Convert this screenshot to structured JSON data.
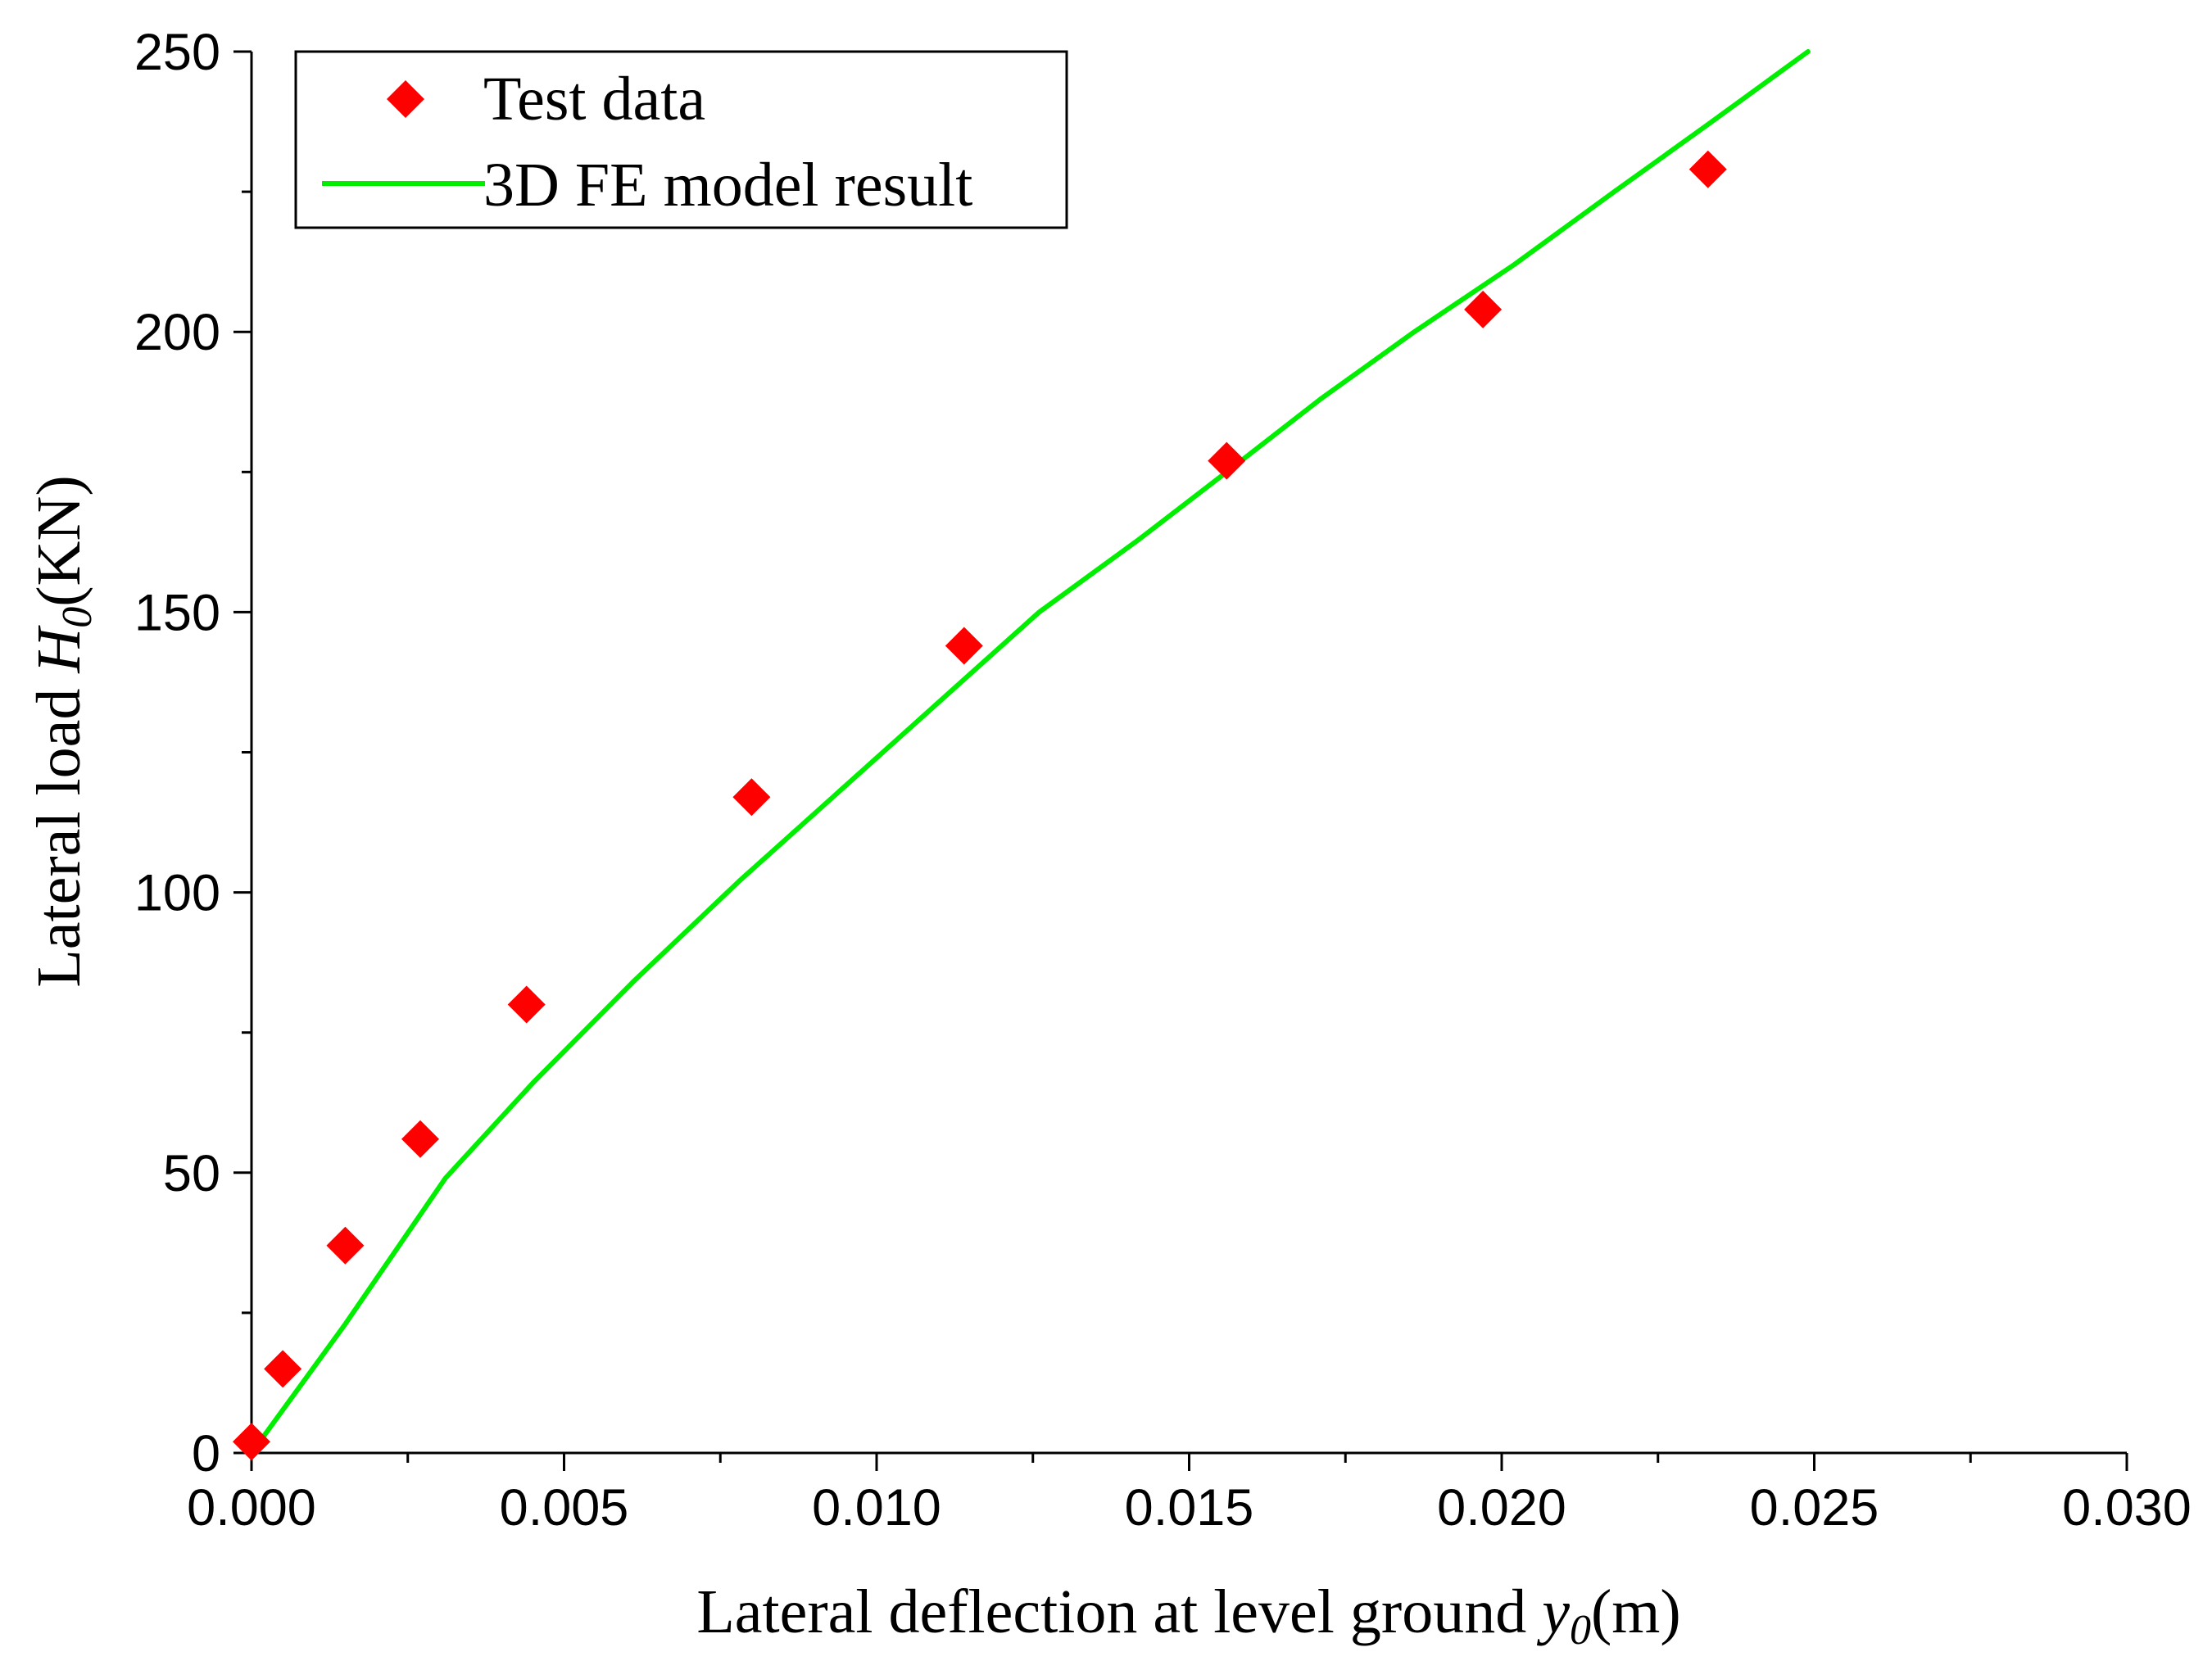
{
  "chart_data": {
    "type": "scatter",
    "title": "",
    "xlabel": {
      "main": "Lateral deflection at level ground ",
      "var": "y",
      "sub": "0",
      "unit": "(m)"
    },
    "ylabel": {
      "main": "Lateral load ",
      "var": "H",
      "sub": "0",
      "unit": "(KN)"
    },
    "xlim": [
      0,
      0.03
    ],
    "ylim": [
      0,
      250
    ],
    "xticks": [
      "0.000",
      "0.005",
      "0.010",
      "0.015",
      "0.020",
      "0.025",
      "0.030"
    ],
    "yticks": [
      "0",
      "50",
      "100",
      "150",
      "200",
      "250"
    ],
    "xtick_values": [
      0,
      0.005,
      0.01,
      0.015,
      0.02,
      0.025,
      0.03
    ],
    "ytick_values": [
      0,
      50,
      100,
      150,
      200,
      250
    ],
    "legend_position": "top-left",
    "series": [
      {
        "name": "Test data",
        "kind": "scatter",
        "marker": "diamond",
        "color": "#ff0000",
        "x": [
          0.0,
          0.0005,
          0.0015,
          0.0027,
          0.0044,
          0.008,
          0.0114,
          0.0156,
          0.0197,
          0.0233
        ],
        "y": [
          2,
          15,
          37,
          56,
          80,
          117,
          144,
          177,
          204,
          229
        ]
      },
      {
        "name": "3D FE model result",
        "kind": "line",
        "color": "#00ee00",
        "x": [
          0.0,
          0.0015,
          0.0031,
          0.0045,
          0.0061,
          0.0078,
          0.0094,
          0.011,
          0.0126,
          0.0142,
          0.0156,
          0.0171,
          0.0186,
          0.0202,
          0.0218,
          0.0233,
          0.0249
        ],
        "y": [
          0,
          23,
          49,
          66,
          84,
          102,
          118,
          134,
          150,
          163,
          175,
          188,
          200,
          212,
          225,
          237,
          250
        ]
      }
    ]
  }
}
